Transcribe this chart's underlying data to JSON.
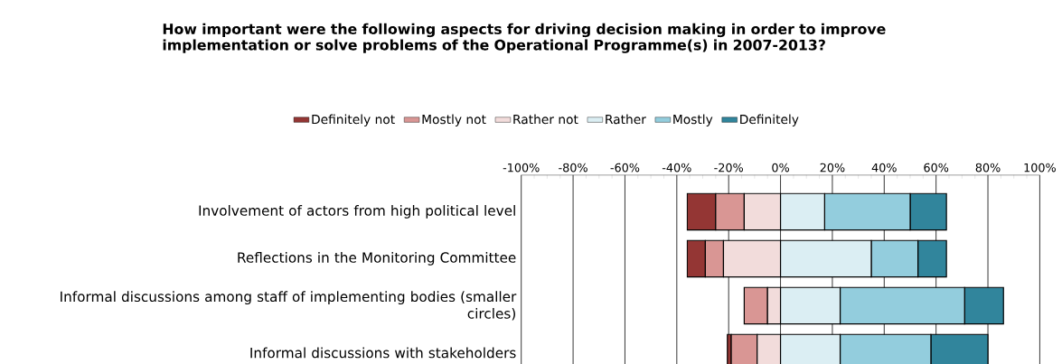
{
  "chart_data": {
    "type": "bar",
    "orientation": "horizontal",
    "stacked": true,
    "title": "How important were the following aspects for driving decision making in order to improve implementation or solve problems of the Operational Programme(s) in 2007-2013?",
    "categories": [
      "Involvement of actors from high political level",
      "Reflections in the Monitoring Committee",
      "Informal discussions among staff of implementing bodies (smaller circles)",
      "Informal discussions with stakeholders"
    ],
    "series": [
      {
        "name": "Definitely not",
        "color": "#943634",
        "values": [
          -11,
          -7,
          0,
          -1.5
        ]
      },
      {
        "name": "Mostly not",
        "color": "#d99694",
        "values": [
          -11,
          -7,
          -9,
          -10
        ]
      },
      {
        "name": "Rather not",
        "color": "#f2dcdb",
        "values": [
          -14,
          -22,
          -5,
          -9
        ]
      },
      {
        "name": "Rather",
        "color": "#dbeef3",
        "values": [
          17,
          35,
          23,
          23
        ]
      },
      {
        "name": "Mostly",
        "color": "#93cddd",
        "values": [
          33,
          18,
          48,
          35
        ]
      },
      {
        "name": "Definitely",
        "color": "#31859c",
        "values": [
          14,
          11,
          15,
          22
        ]
      }
    ],
    "xlim": [
      -100,
      100
    ],
    "xticks": [
      {
        "value": -100,
        "label": "-100%"
      },
      {
        "value": -80,
        "label": "-80%"
      },
      {
        "value": -60,
        "label": "-60%"
      },
      {
        "value": -40,
        "label": "-40%"
      },
      {
        "value": -20,
        "label": "-20%"
      },
      {
        "value": 0,
        "label": "0%"
      },
      {
        "value": 20,
        "label": "20%"
      },
      {
        "value": 40,
        "label": "40%"
      },
      {
        "value": 60,
        "label": "60%"
      },
      {
        "value": 80,
        "label": "80%"
      },
      {
        "value": 100,
        "label": "100%"
      }
    ],
    "grid": "x",
    "legend": "top"
  }
}
